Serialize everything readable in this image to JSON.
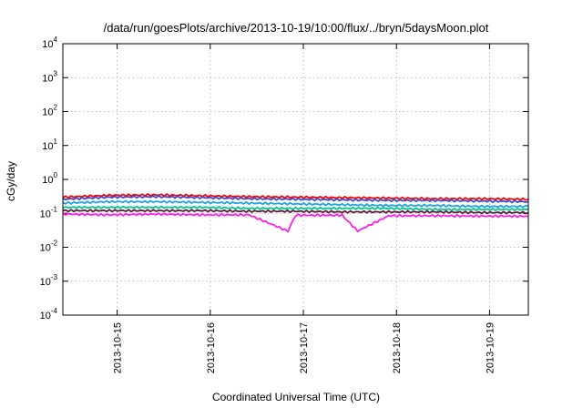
{
  "chart_data": {
    "type": "line",
    "title": "/data/run/goesPlots/archive/2013-10-19/10:00/flux/../bryn/5daysMoon.plot",
    "xlabel": "Coordinated Universal Time (UTC)",
    "ylabel": "cGy/day",
    "yscale": "log",
    "ylim": [
      0.0001,
      10000
    ],
    "y_ticks": [
      {
        "value": 0.0001,
        "base": "10",
        "exp": "-4"
      },
      {
        "value": 0.001,
        "base": "10",
        "exp": "-3"
      },
      {
        "value": 0.01,
        "base": "10",
        "exp": "-2"
      },
      {
        "value": 0.1,
        "base": "10",
        "exp": "-1"
      },
      {
        "value": 1,
        "base": "10",
        "exp": "0"
      },
      {
        "value": 10,
        "base": "10",
        "exp": "1"
      },
      {
        "value": 100,
        "base": "10",
        "exp": "2"
      },
      {
        "value": 1000,
        "base": "10",
        "exp": "3"
      },
      {
        "value": 10000,
        "base": "10",
        "exp": "4"
      }
    ],
    "xlim": [
      "2013-10-14T10:00",
      "2013-10-19T10:00"
    ],
    "x_ticks": [
      "2013-10-15",
      "2013-10-16",
      "2013-10-17",
      "2013-10-18",
      "2013-10-19"
    ],
    "grid": true,
    "series": [
      {
        "color": "#ff0000",
        "points": [
          [
            "2013-10-14T10:00",
            0.3
          ],
          [
            "2013-10-14T22:00",
            0.34
          ],
          [
            "2013-10-15T10:00",
            0.35
          ],
          [
            "2013-10-15T22:00",
            0.33
          ],
          [
            "2013-10-16T10:00",
            0.31
          ],
          [
            "2013-10-16T22:00",
            0.3
          ],
          [
            "2013-10-17T10:00",
            0.29
          ],
          [
            "2013-10-17T22:00",
            0.28
          ],
          [
            "2013-10-18T10:00",
            0.27
          ],
          [
            "2013-10-18T22:00",
            0.27
          ],
          [
            "2013-10-19T10:00",
            0.26
          ]
        ]
      },
      {
        "color": "#3a4bd0",
        "points": [
          [
            "2013-10-14T10:00",
            0.26
          ],
          [
            "2013-10-14T22:00",
            0.3
          ],
          [
            "2013-10-15T10:00",
            0.31
          ],
          [
            "2013-10-15T22:00",
            0.29
          ],
          [
            "2013-10-16T10:00",
            0.27
          ],
          [
            "2013-10-16T22:00",
            0.26
          ],
          [
            "2013-10-17T10:00",
            0.25
          ],
          [
            "2013-10-17T22:00",
            0.24
          ],
          [
            "2013-10-18T10:00",
            0.24
          ],
          [
            "2013-10-18T22:00",
            0.23
          ],
          [
            "2013-10-19T10:00",
            0.22
          ]
        ]
      },
      {
        "color": "#1aa3e8",
        "points": [
          [
            "2013-10-14T10:00",
            0.2
          ],
          [
            "2013-10-14T22:00",
            0.22
          ],
          [
            "2013-10-15T10:00",
            0.22
          ],
          [
            "2013-10-15T22:00",
            0.21
          ],
          [
            "2013-10-16T10:00",
            0.2
          ],
          [
            "2013-10-16T22:00",
            0.19
          ],
          [
            "2013-10-17T10:00",
            0.18
          ],
          [
            "2013-10-17T22:00",
            0.17
          ],
          [
            "2013-10-18T10:00",
            0.17
          ],
          [
            "2013-10-18T22:00",
            0.16
          ],
          [
            "2013-10-19T10:00",
            0.16
          ]
        ]
      },
      {
        "color": "#00c88c",
        "points": [
          [
            "2013-10-14T10:00",
            0.15
          ],
          [
            "2013-10-14T22:00",
            0.15
          ],
          [
            "2013-10-15T10:00",
            0.15
          ],
          [
            "2013-10-15T22:00",
            0.15
          ],
          [
            "2013-10-16T10:00",
            0.14
          ],
          [
            "2013-10-16T22:00",
            0.14
          ],
          [
            "2013-10-17T10:00",
            0.14
          ],
          [
            "2013-10-17T22:00",
            0.14
          ],
          [
            "2013-10-18T10:00",
            0.13
          ],
          [
            "2013-10-18T22:00",
            0.13
          ],
          [
            "2013-10-19T10:00",
            0.13
          ]
        ]
      },
      {
        "color": "#5a1a3a",
        "points": [
          [
            "2013-10-14T10:00",
            0.12
          ],
          [
            "2013-10-14T22:00",
            0.12
          ],
          [
            "2013-10-15T10:00",
            0.12
          ],
          [
            "2013-10-15T22:00",
            0.12
          ],
          [
            "2013-10-16T10:00",
            0.115
          ],
          [
            "2013-10-16T22:00",
            0.115
          ],
          [
            "2013-10-17T10:00",
            0.11
          ],
          [
            "2013-10-17T22:00",
            0.11
          ],
          [
            "2013-10-18T10:00",
            0.11
          ],
          [
            "2013-10-18T22:00",
            0.105
          ],
          [
            "2013-10-19T10:00",
            0.105
          ]
        ]
      },
      {
        "color": "#ff1ee6",
        "points": [
          [
            "2013-10-14T10:00",
            0.095
          ],
          [
            "2013-10-14T22:00",
            0.09
          ],
          [
            "2013-10-15T10:00",
            0.095
          ],
          [
            "2013-10-15T22:00",
            0.09
          ],
          [
            "2013-10-16T10:00",
            0.09
          ],
          [
            "2013-10-16T22:00",
            0.088
          ],
          [
            "2013-10-16T20:00",
            0.03
          ],
          [
            "2013-10-17T10:00",
            0.088
          ],
          [
            "2013-10-17T22:00",
            0.085
          ],
          [
            "2013-10-17T14:00",
            0.03
          ],
          [
            "2013-10-18T10:00",
            0.085
          ],
          [
            "2013-10-18T22:00",
            0.083
          ],
          [
            "2013-10-19T10:00",
            0.082
          ]
        ]
      }
    ]
  }
}
